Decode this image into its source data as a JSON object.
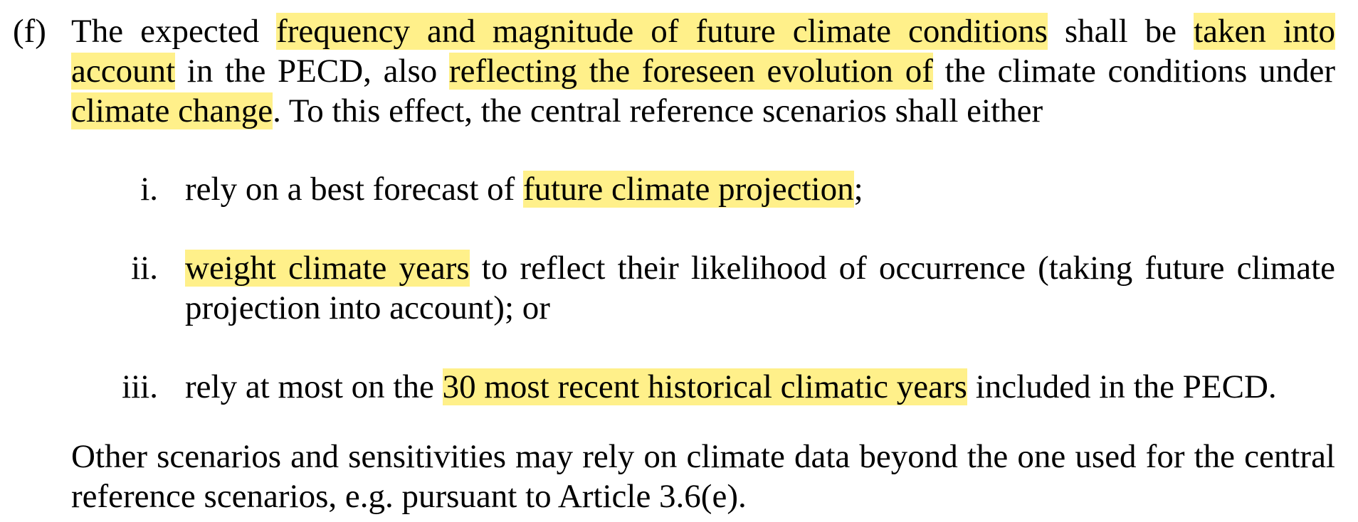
{
  "clause": {
    "marker": "(f)",
    "segments": [
      {
        "text": "The expected ",
        "highlight": false
      },
      {
        "text": "frequency and magnitude of future climate conditions",
        "highlight": true
      },
      {
        "text": " shall be ",
        "highlight": false
      },
      {
        "text": "taken into account",
        "highlight": true
      },
      {
        "text": " in the PECD, also ",
        "highlight": false
      },
      {
        "text": "reflecting the foreseen evolution of",
        "highlight": true
      },
      {
        "text": " the climate conditions under ",
        "highlight": false
      },
      {
        "text": "climate change",
        "highlight": true
      },
      {
        "text": ". To this effect, the central reference scenarios shall either",
        "highlight": false
      }
    ]
  },
  "items": [
    {
      "marker": "i.",
      "segments": [
        {
          "text": "rely on a best forecast of ",
          "highlight": false
        },
        {
          "text": "future climate projection",
          "highlight": true
        },
        {
          "text": ";",
          "highlight": false
        }
      ]
    },
    {
      "marker": "ii.",
      "segments": [
        {
          "text": "weight climate years",
          "highlight": true
        },
        {
          "text": " to reflect their likelihood of occurrence (taking future climate projection into account); or",
          "highlight": false
        }
      ]
    },
    {
      "marker": "iii.",
      "segments": [
        {
          "text": "rely at most on the ",
          "highlight": false
        },
        {
          "text": "30 most recent historical climatic years",
          "highlight": true
        },
        {
          "text": " included in the PECD.",
          "highlight": false
        }
      ]
    }
  ],
  "other_paragraph": "Other scenarios and sensitivities may rely on climate data beyond the one used for the central reference scenarios, e.g. pursuant to Article 3.6(e).",
  "colors": {
    "highlight": "#fff08a",
    "text": "#000000",
    "background": "#ffffff"
  }
}
